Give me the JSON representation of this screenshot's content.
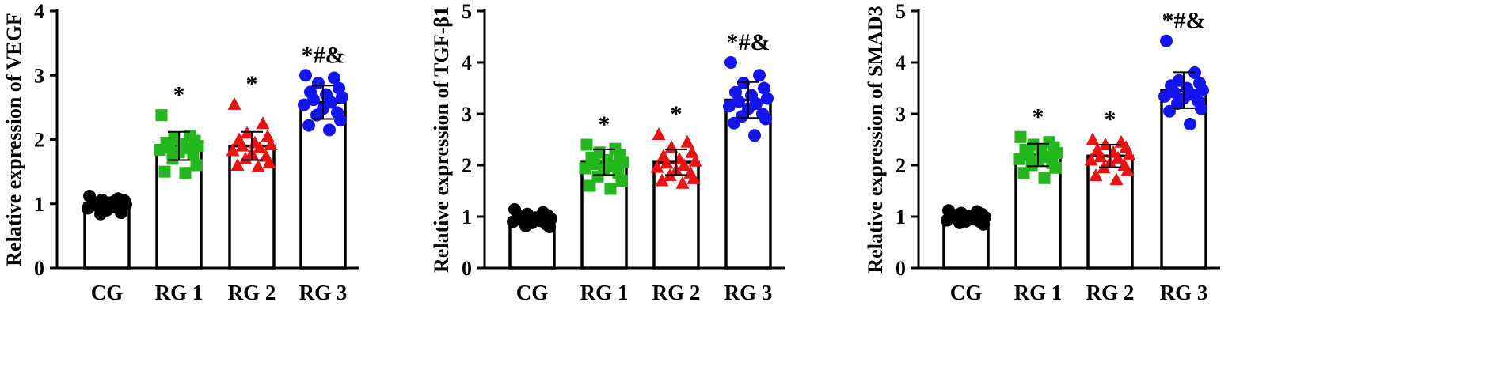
{
  "chart_data": [
    {
      "type": "bar",
      "categories": [
        "CG",
        "RG 1",
        "RG 2",
        "RG 3"
      ],
      "ylabel": "Relative expression of VEGF",
      "ylim": [
        0,
        4
      ],
      "yticks": [
        "0",
        "1",
        "2",
        "3",
        "4"
      ],
      "values": [
        1.0,
        1.9,
        1.9,
        2.58
      ],
      "error": [
        0.1,
        0.22,
        0.22,
        0.26
      ],
      "significance": [
        "",
        "*",
        "*",
        "*#&"
      ],
      "points": [
        [
          1.12,
          1.08,
          1.06,
          1.04,
          1.02,
          1.0,
          0.99,
          0.97,
          0.95,
          0.93,
          0.9,
          0.86,
          0.84,
          1.05,
          0.98,
          1.03
        ],
        [
          2.38,
          2.06,
          2.02,
          1.98,
          1.95,
          1.93,
          1.9,
          1.88,
          1.86,
          1.84,
          1.8,
          1.76,
          1.7,
          1.6,
          1.5,
          1.48
        ],
        [
          2.55,
          2.25,
          2.1,
          2.05,
          2.0,
          1.95,
          1.92,
          1.9,
          1.87,
          1.83,
          1.78,
          1.74,
          1.7,
          1.64,
          1.6,
          1.58
        ],
        [
          3.0,
          2.96,
          2.88,
          2.8,
          2.74,
          2.7,
          2.66,
          2.62,
          2.58,
          2.54,
          2.48,
          2.42,
          2.38,
          2.3,
          2.22,
          2.15
        ]
      ]
    },
    {
      "type": "bar",
      "categories": [
        "CG",
        "RG 1",
        "RG 2",
        "RG 3"
      ],
      "ylabel": "Relative expression of TGF-β1",
      "ylim": [
        0,
        5
      ],
      "yticks": [
        "0",
        "1",
        "2",
        "3",
        "4",
        "5"
      ],
      "values": [
        0.97,
        2.06,
        2.06,
        3.27
      ],
      "error": [
        0.1,
        0.25,
        0.25,
        0.35
      ],
      "significance": [
        "",
        "*",
        "*",
        "*#&"
      ],
      "points": [
        [
          1.14,
          1.08,
          1.05,
          1.02,
          1.0,
          0.98,
          0.96,
          0.94,
          0.92,
          0.9,
          0.88,
          0.85,
          0.82,
          0.8,
          1.03,
          0.95
        ],
        [
          2.4,
          2.32,
          2.25,
          2.2,
          2.15,
          2.1,
          2.06,
          2.02,
          1.98,
          1.94,
          1.9,
          1.85,
          1.78,
          1.7,
          1.6,
          1.54
        ],
        [
          2.6,
          2.45,
          2.35,
          2.25,
          2.18,
          2.12,
          2.08,
          2.04,
          2.0,
          1.96,
          1.9,
          1.85,
          1.8,
          1.74,
          1.7,
          1.65
        ],
        [
          4.0,
          3.75,
          3.6,
          3.5,
          3.42,
          3.36,
          3.3,
          3.24,
          3.2,
          3.15,
          3.1,
          3.0,
          2.95,
          2.9,
          2.82,
          2.58
        ]
      ]
    },
    {
      "type": "bar",
      "categories": [
        "CG",
        "RG 1",
        "RG 2",
        "RG 3"
      ],
      "ylabel": "Relative expression of SMAD3",
      "ylim": [
        0,
        5
      ],
      "yticks": [
        "0",
        "1",
        "2",
        "3",
        "4",
        "5"
      ],
      "values": [
        0.98,
        2.2,
        2.18,
        3.46
      ],
      "error": [
        0.1,
        0.22,
        0.22,
        0.35
      ],
      "significance": [
        "",
        "*",
        "*",
        "*#&"
      ],
      "points": [
        [
          1.12,
          1.1,
          1.07,
          1.05,
          1.03,
          1.01,
          0.99,
          0.97,
          0.95,
          0.93,
          0.91,
          0.9,
          0.88,
          0.85,
          1.04,
          0.96
        ],
        [
          2.55,
          2.45,
          2.4,
          2.35,
          2.3,
          2.27,
          2.24,
          2.2,
          2.16,
          2.12,
          2.08,
          2.04,
          2.0,
          1.95,
          1.85,
          1.75
        ],
        [
          2.5,
          2.45,
          2.4,
          2.35,
          2.3,
          2.25,
          2.2,
          2.17,
          2.14,
          2.1,
          2.05,
          2.0,
          1.95,
          1.9,
          1.8,
          1.72
        ],
        [
          4.42,
          3.8,
          3.65,
          3.6,
          3.55,
          3.5,
          3.46,
          3.42,
          3.38,
          3.34,
          3.3,
          3.25,
          3.2,
          3.1,
          3.05,
          2.8
        ]
      ]
    }
  ],
  "colors": {
    "axis": "#000000",
    "bar_fill": "#ffffff",
    "group_CG": "#000000",
    "group_RG1": "#22b81b",
    "group_RG2": "#ee1111",
    "group_RG3": "#1414f0"
  },
  "markers": [
    "circle",
    "square",
    "triangle",
    "circle"
  ]
}
